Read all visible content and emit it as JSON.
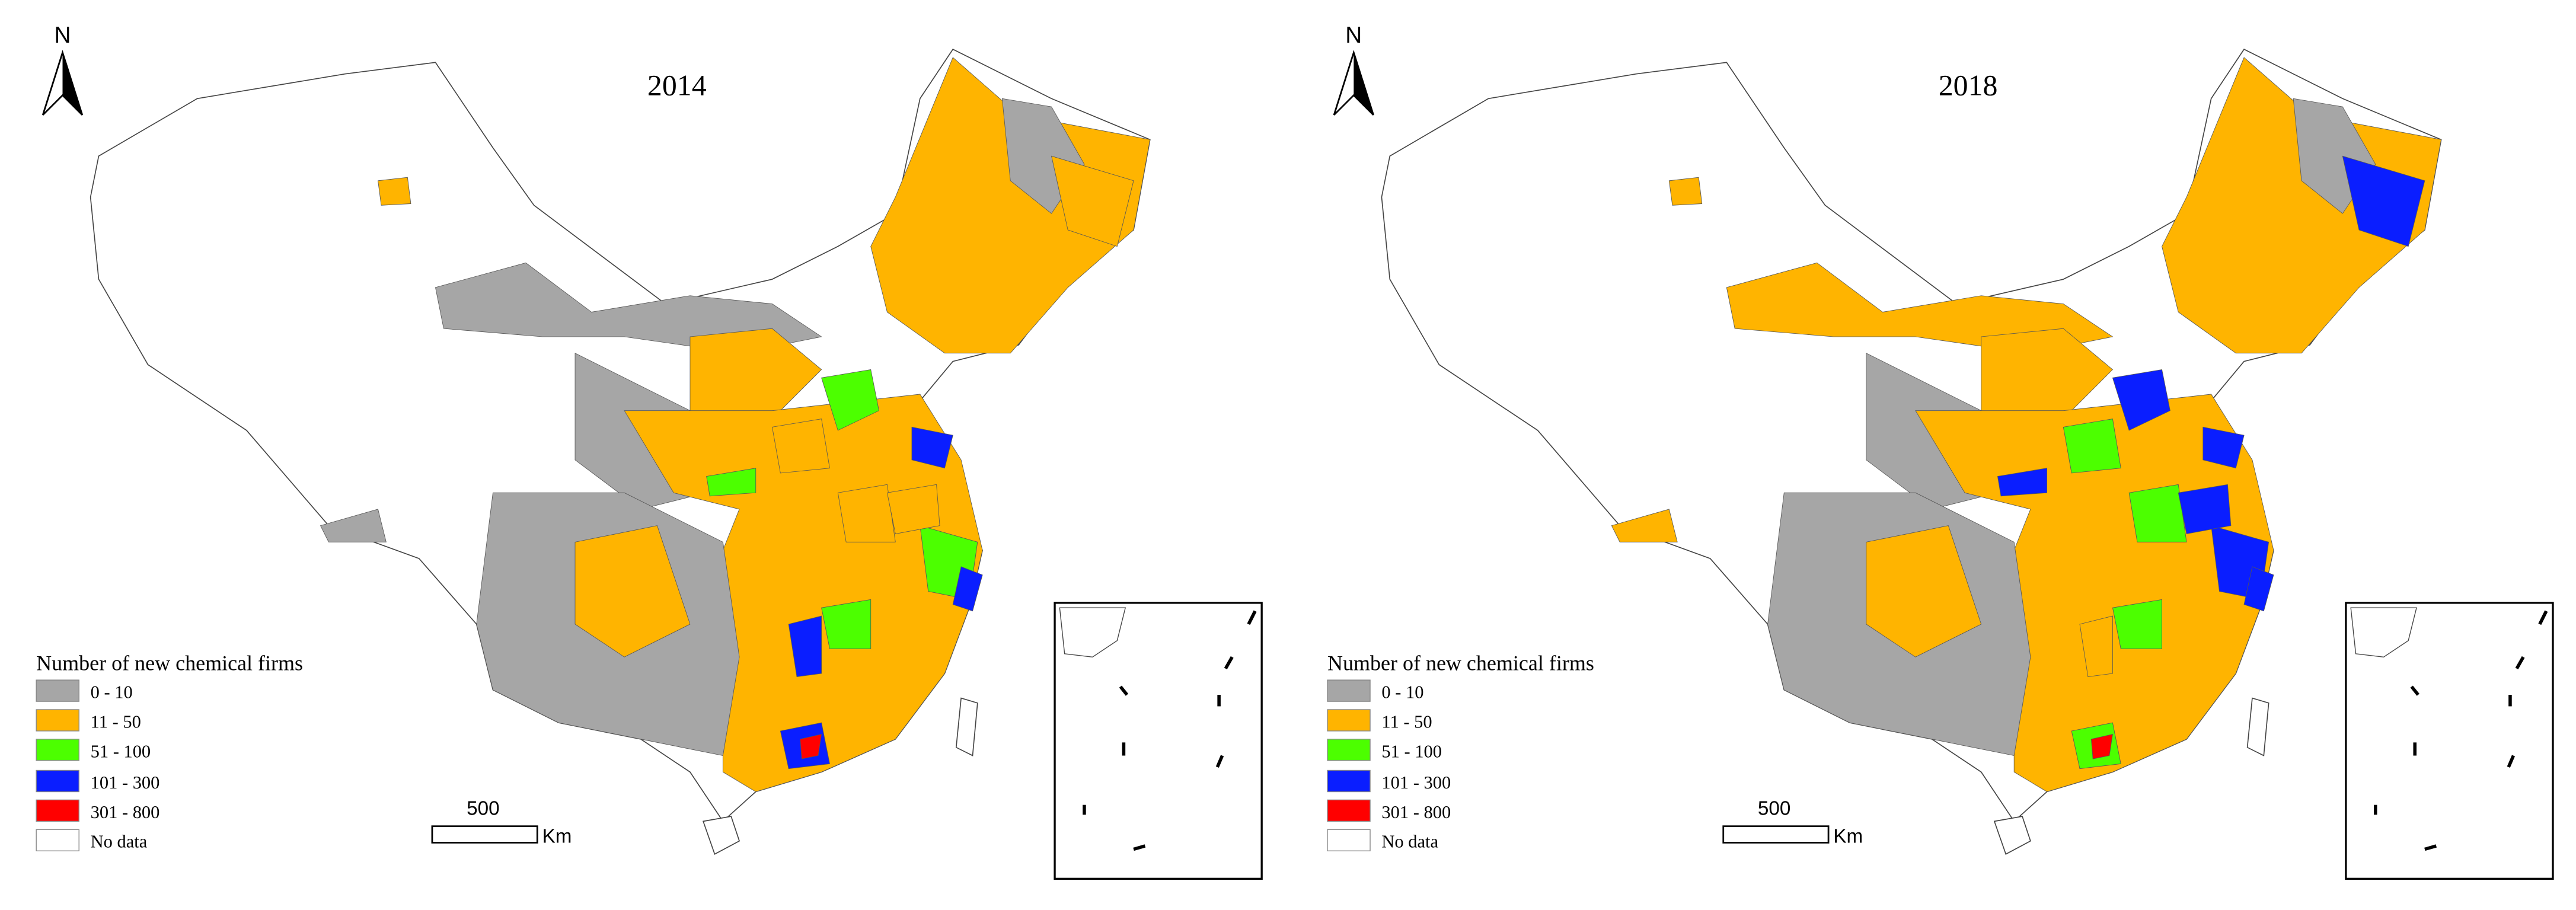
{
  "panels": [
    {
      "title": "2014"
    },
    {
      "title": "2018"
    }
  ],
  "north": "N",
  "legend": {
    "title": "Number of new chemical firms",
    "classes": [
      {
        "label": "0 - 10",
        "color": "#a6a6a6"
      },
      {
        "label": "11 - 50",
        "color": "#ffb400"
      },
      {
        "label": "51 - 100",
        "color": "#4cff00"
      },
      {
        "label": "101 - 300",
        "color": "#0a1eff"
      },
      {
        "label": "301 - 800",
        "color": "#ff0000"
      },
      {
        "label": "No data",
        "color": "#ffffff"
      }
    ]
  },
  "scale_bar": {
    "label": "500",
    "unit": "Km"
  }
}
